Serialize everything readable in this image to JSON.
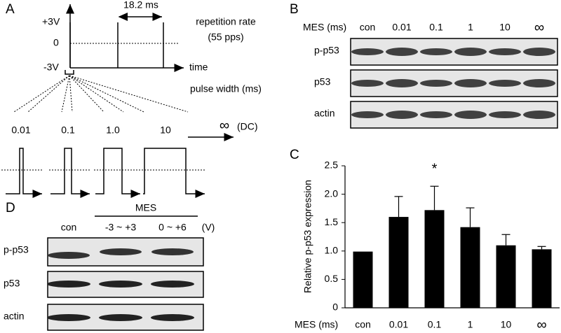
{
  "panel_a": {
    "label": "A",
    "levels": [
      "+3V",
      "0",
      "-3V"
    ],
    "time": "time",
    "period": "18.2 ms",
    "rate": [
      "repetition rate",
      "(55 pps)"
    ],
    "pulse_width": "pulse width (ms)",
    "pulses": [
      "0.01",
      "0.1",
      "1.0",
      "10"
    ],
    "dc": [
      "∞",
      "(DC)"
    ]
  },
  "panel_b": {
    "label": "B",
    "header": "MES (ms)",
    "lanes": [
      "con",
      "0.01",
      "0.1",
      "1",
      "10",
      "∞"
    ],
    "rows": [
      "p-p53",
      "p53",
      "actin"
    ]
  },
  "panel_c": {
    "label": "C"
  },
  "chart_data": {
    "type": "bar",
    "y_label": "Relative p-p53 expression",
    "x_label": "MES (ms)",
    "categories": [
      "con",
      "0.01",
      "0.1",
      "1",
      "10",
      "∞"
    ],
    "values": [
      0.99,
      1.6,
      1.72,
      1.42,
      1.1,
      1.03
    ],
    "errors": [
      0,
      0.36,
      0.42,
      0.34,
      0.19,
      0.05
    ],
    "color": "#000000",
    "ylim": [
      0,
      2.5
    ],
    "yticks": [
      0,
      0.5,
      {
        "value": 1,
        "label": "1.0"
      },
      1.5,
      {
        "value": 2,
        "label": "2.0"
      },
      2.5
    ],
    "annotation": "*",
    "annotation_category": 2
  },
  "panel_d": {
    "label": "D",
    "group": "MES",
    "lanes": [
      "con",
      "-3 ~ +3",
      "0 ~ +6"
    ],
    "unit": "(V)",
    "rows": [
      "p-p53",
      "p53",
      "actin"
    ]
  }
}
